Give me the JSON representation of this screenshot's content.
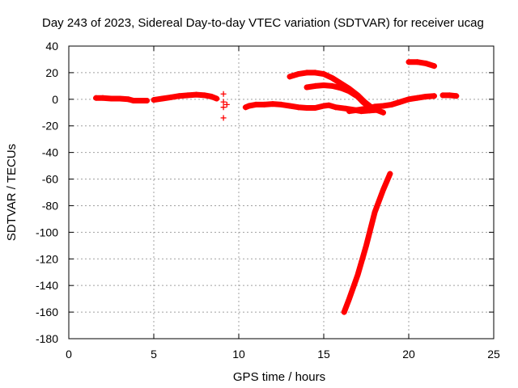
{
  "chart_data": {
    "type": "scatter",
    "title": "Day 243 of 2023, Sidereal Day-to-day VTEC variation (SDTVAR) for receiver ucag",
    "xlabel": "GPS time / hours",
    "ylabel": "SDTVAR / TECUs",
    "xlim": [
      0,
      25
    ],
    "ylim": [
      -180,
      40
    ],
    "xticks": [
      "0",
      "5",
      "10",
      "15",
      "20",
      "25"
    ],
    "yticks": [
      "40",
      "20",
      "0",
      "-20",
      "-40",
      "-60",
      "-80",
      "-100",
      "-120",
      "-140",
      "-160",
      "-180"
    ],
    "grid": true,
    "marker": "+",
    "color": "#ff0000",
    "series": [
      {
        "name": "seg1",
        "points": [
          [
            1.6,
            1
          ],
          [
            2.0,
            1
          ],
          [
            2.5,
            0.5
          ],
          [
            3.0,
            0.5
          ],
          [
            3.5,
            0
          ],
          [
            3.8,
            -1
          ],
          [
            4.2,
            -1
          ],
          [
            4.6,
            -1
          ]
        ]
      },
      {
        "name": "seg2",
        "points": [
          [
            5.0,
            -0.5
          ],
          [
            5.5,
            0.5
          ],
          [
            6.0,
            1.5
          ],
          [
            6.5,
            2.5
          ],
          [
            7.0,
            3
          ],
          [
            7.5,
            3.5
          ],
          [
            8.0,
            3
          ],
          [
            8.4,
            2
          ],
          [
            8.7,
            0.5
          ]
        ]
      },
      {
        "name": "seg3",
        "points": [
          [
            9.1,
            4
          ],
          [
            9.1,
            -2
          ],
          [
            9.1,
            -6
          ],
          [
            9.1,
            -14
          ],
          [
            9.3,
            -4
          ]
        ]
      },
      {
        "name": "seg4",
        "points": [
          [
            10.4,
            -6
          ],
          [
            10.6,
            -5
          ],
          [
            11.0,
            -4
          ],
          [
            11.5,
            -4
          ],
          [
            12.0,
            -3.5
          ],
          [
            12.5,
            -4
          ],
          [
            13.0,
            -5
          ],
          [
            13.5,
            -6
          ],
          [
            14.0,
            -6.5
          ],
          [
            14.5,
            -6.5
          ],
          [
            15.0,
            -5
          ],
          [
            15.3,
            -4.5
          ],
          [
            15.7,
            -6
          ],
          [
            16.3,
            -7
          ],
          [
            16.8,
            -8
          ],
          [
            17.2,
            -9
          ],
          [
            17.7,
            -8.5
          ],
          [
            18.2,
            -8
          ]
        ]
      },
      {
        "name": "seg5",
        "points": [
          [
            13.0,
            17
          ],
          [
            13.5,
            19
          ],
          [
            14.0,
            20
          ],
          [
            14.5,
            20
          ],
          [
            15.0,
            19
          ],
          [
            15.5,
            16
          ],
          [
            16.0,
            12
          ],
          [
            16.5,
            8
          ],
          [
            17.0,
            3
          ],
          [
            17.4,
            -2
          ],
          [
            17.8,
            -6
          ],
          [
            18.1,
            -8
          ],
          [
            18.5,
            -10
          ]
        ]
      },
      {
        "name": "seg6",
        "points": [
          [
            14.0,
            9
          ],
          [
            14.5,
            10
          ],
          [
            15.0,
            10.5
          ],
          [
            15.5,
            10
          ],
          [
            16.0,
            8.5
          ],
          [
            16.5,
            6
          ],
          [
            17.0,
            2
          ],
          [
            17.3,
            -2
          ],
          [
            17.6,
            -5
          ]
        ]
      },
      {
        "name": "seg7",
        "points": [
          [
            16.5,
            -9
          ],
          [
            17.0,
            -8
          ],
          [
            17.5,
            -7
          ],
          [
            18.0,
            -5.5
          ],
          [
            18.5,
            -5
          ],
          [
            19.0,
            -4
          ],
          [
            19.5,
            -2
          ],
          [
            20.0,
            0
          ],
          [
            20.5,
            1
          ],
          [
            21.0,
            2
          ],
          [
            21.5,
            2.5
          ]
        ]
      },
      {
        "name": "seg8",
        "points": [
          [
            16.2,
            -160
          ],
          [
            16.5,
            -150
          ],
          [
            17.0,
            -132
          ],
          [
            17.5,
            -110
          ],
          [
            18.0,
            -85
          ],
          [
            18.5,
            -68
          ],
          [
            18.9,
            -56
          ]
        ]
      },
      {
        "name": "seg9",
        "points": [
          [
            20.0,
            28
          ],
          [
            20.5,
            28
          ],
          [
            21.0,
            27
          ],
          [
            21.5,
            25
          ]
        ]
      },
      {
        "name": "seg10",
        "points": [
          [
            22.0,
            3
          ],
          [
            22.4,
            3
          ],
          [
            22.8,
            2.5
          ]
        ]
      }
    ]
  }
}
